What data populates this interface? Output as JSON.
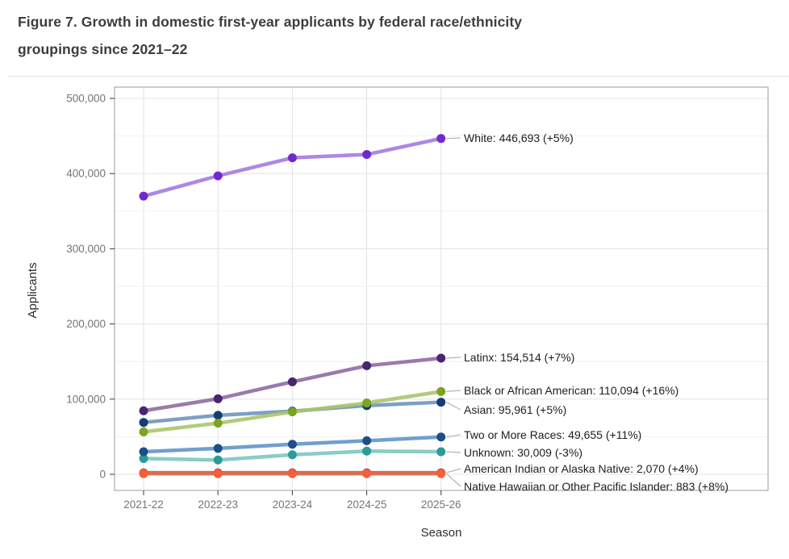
{
  "header": {
    "title_lines": [
      "Figure 7. Growth in domestic first-year applicants by federal race/ethnicity",
      "groupings since 2021–22"
    ]
  },
  "chart_data": {
    "type": "line",
    "title": "Figure 7. Growth in domestic first-year applicants by federal race/ethnicity groupings since 2021–22",
    "xlabel": "Season",
    "ylabel": "Applicants",
    "categories": [
      "2021-22",
      "2022-23",
      "2023-24",
      "2024-25",
      "2025-26"
    ],
    "ylim": [
      0,
      500000
    ],
    "yticks": [
      {
        "value": 0,
        "label": "0"
      },
      {
        "value": 100000,
        "label": "100,000"
      },
      {
        "value": 200000,
        "label": "200,000"
      },
      {
        "value": 300000,
        "label": "300,000"
      },
      {
        "value": 400000,
        "label": "400,000"
      },
      {
        "value": 500000,
        "label": "500,000"
      }
    ],
    "yticks_minor": [
      50000,
      150000,
      250000,
      350000,
      450000
    ],
    "grid": "horizontal major+minor, vertical major at categories",
    "legend": "direct labels at right end of each line",
    "colors": {
      "grid_major": "#e3e3e3",
      "grid_minor": "#f1f1f1",
      "panel_border": "#9b9b9b",
      "tick_mark": "#3a3a3a",
      "tick_label": "#757575",
      "axis_title": "#2e2e2e",
      "annotation_text": "#1e1e1e",
      "leader_line": "#b5b5b5"
    },
    "series": [
      {
        "id": "american-indian",
        "name": "American Indian or Alaska Native",
        "values": [
          2000,
          2010,
          2020,
          1990,
          2070
        ],
        "final_value": "2,070",
        "pct_change": "+4%",
        "label": "American Indian or Alaska Native: 2,070 (+4%)",
        "line_color": "#b85c4b",
        "point_color": "#cf4a2e",
        "label_y": 488
      },
      {
        "id": "native-hawaiian",
        "name": "Native Hawaiian or Other Pacific Islander",
        "values": [
          830,
          830,
          840,
          818,
          883
        ],
        "final_value": "883",
        "pct_change": "+8%",
        "label": "Native Hawaiian or Other Pacific Islander: 883 (+8%)",
        "line_color": "#de6c4e",
        "point_color": "#f2603b",
        "label_y": 510
      },
      {
        "id": "unknown",
        "name": "Unknown",
        "values": [
          21000,
          19000,
          26000,
          30900,
          30009
        ],
        "final_value": "30,009",
        "pct_change": "-3%",
        "label": "Unknown: 30,009 (-3%)",
        "line_color": "#7dc6c1",
        "point_color": "#299c95",
        "label_y": 468
      },
      {
        "id": "two-or-more",
        "name": "Two or More Races",
        "values": [
          30000,
          34500,
          40000,
          44700,
          49655
        ],
        "final_value": "49,655",
        "pct_change": "+11%",
        "label": "Two or More Races: 49,655 (+11%)",
        "line_color": "#6096c8",
        "point_color": "#1c4f87",
        "label_y": 446
      },
      {
        "id": "asian",
        "name": "Asian",
        "values": [
          69000,
          78500,
          84000,
          91400,
          95961
        ],
        "final_value": "95,961",
        "pct_change": "+5%",
        "label": "Asian: 95,961 (+5%)",
        "line_color": "#7095bd",
        "point_color": "#123e71",
        "label_y": 415
      },
      {
        "id": "black",
        "name": "Black or African American",
        "values": [
          56500,
          68000,
          83000,
          94900,
          110094
        ],
        "final_value": "110,094",
        "pct_change": "+16%",
        "label": "Black or African American: 110,094 (+16%)",
        "line_color": "#abc56b",
        "point_color": "#7ba420",
        "label_y": 391
      },
      {
        "id": "latinx",
        "name": "Latinx",
        "values": [
          84500,
          100500,
          123000,
          144400,
          154514
        ],
        "final_value": "154,514",
        "pct_change": "+7%",
        "label": "Latinx: 154,514 (+7%)",
        "line_color": "#8e6da2",
        "point_color": "#4a2470",
        "label_y": 350
      },
      {
        "id": "white",
        "name": "White",
        "values": [
          370000,
          397000,
          421000,
          425400,
          446693
        ],
        "final_value": "446,693",
        "pct_change": "+5%",
        "label": "White: 446,693 (+5%)",
        "line_color": "#a37be2",
        "point_color": "#7229cc",
        "label_y": 78
      }
    ]
  }
}
